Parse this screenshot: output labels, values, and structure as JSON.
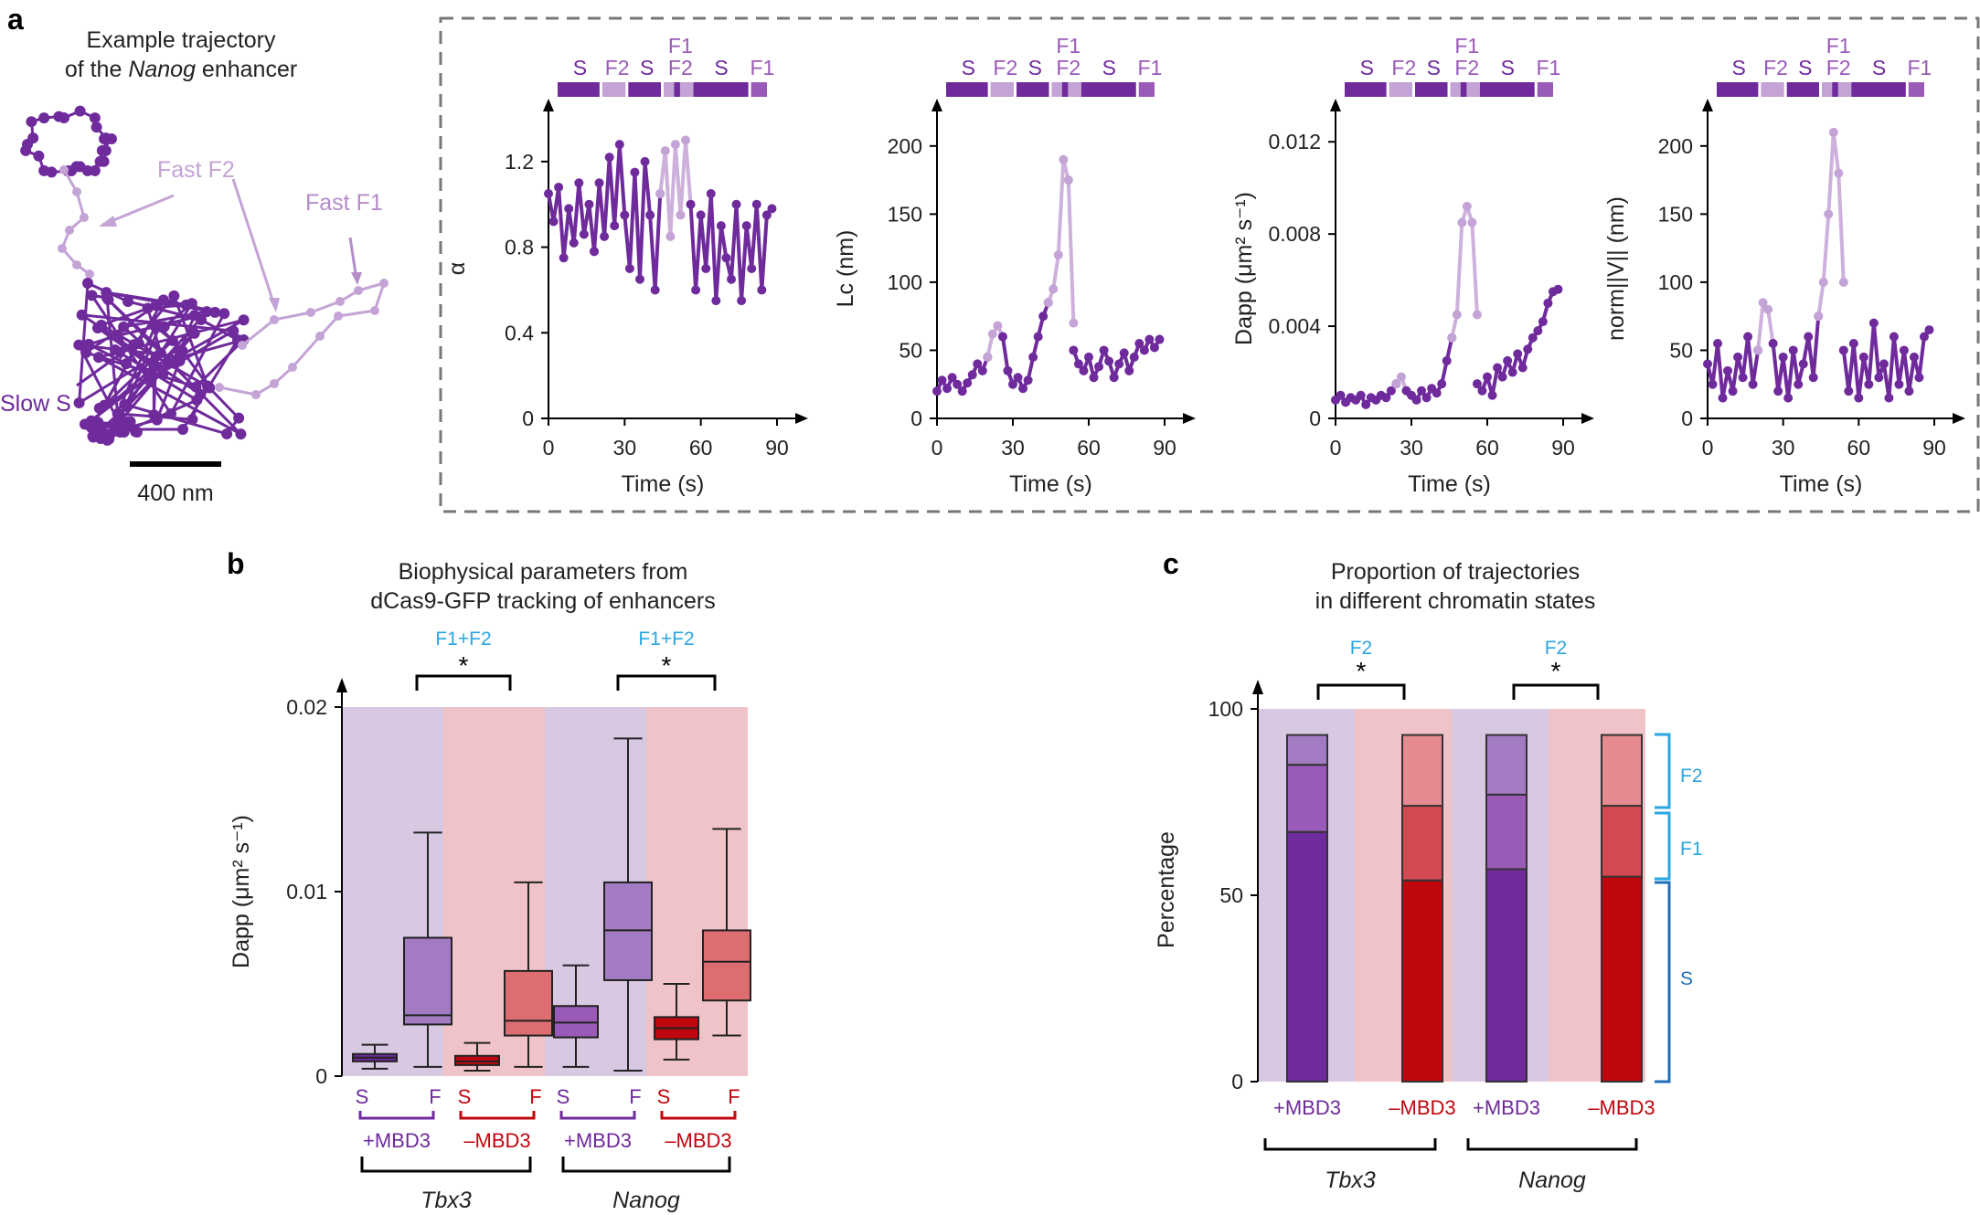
{
  "colors": {
    "s": "#6f2a9c",
    "f1": "#9a5ab8",
    "f2": "#c4a3d6",
    "mbd3_plus_bg": "#d9c8e2",
    "mbd3_minus_bg": "#efc3c8",
    "red_s": "#c0070f",
    "red_f1": "#d44a52",
    "red_f2": "#e48a90",
    "cyan": "#2aa6e0",
    "blue": "#1f6fb8",
    "plus_box_f": "#a27bc2",
    "minus_box_f": "#de6d72"
  },
  "panels": {
    "a": {
      "letter": "a"
    },
    "b": {
      "letter": "b"
    },
    "c": {
      "letter": "c"
    }
  },
  "trajectory": {
    "title_line1": "Example trajectory",
    "title_pre": "of the ",
    "title_gene": "Nanog",
    "title_post": " enhancer",
    "label_f2": "Fast F2",
    "label_f1": "Fast F1",
    "label_s": "Slow S",
    "scale_label": "400 nm"
  },
  "state_bar": {
    "labels": [
      "S",
      "F2",
      "S",
      "F1",
      "F2",
      "S",
      "F1"
    ],
    "segments": [
      {
        "state": "S",
        "start": 0,
        "end": 12
      },
      {
        "state": "F2",
        "start": 12,
        "end": 19
      },
      {
        "state": "S",
        "start": 19,
        "end": 28.5
      },
      {
        "state": "F1F2",
        "start": 28.5,
        "end": 36.5
      },
      {
        "state": "S",
        "start": 36.5,
        "end": 52
      },
      {
        "state": "F1",
        "start": 52,
        "end": 57
      }
    ]
  },
  "chart_data": [
    {
      "type": "line",
      "panel": "a",
      "ylabel": "α",
      "xlabel": "Time (s)",
      "xlim": [
        0,
        90
      ],
      "ylim": [
        0,
        1.4
      ],
      "xticks": [
        0,
        30,
        60,
        90
      ],
      "yticks": [
        0,
        0.4,
        0.8,
        1.2
      ],
      "ytick_labels": [
        "0",
        "0.4",
        "0.8",
        "1.2"
      ],
      "series": [
        {
          "state": "S",
          "x": [
            0,
            2,
            4,
            6,
            8,
            10,
            12,
            14,
            16,
            18
          ],
          "y": [
            1.05,
            0.92,
            1.08,
            0.75,
            0.98,
            0.82,
            1.1,
            0.86,
            1.0,
            0.78
          ]
        },
        {
          "state": "S",
          "x": [
            18,
            20,
            22,
            24,
            26,
            28,
            30,
            32,
            34,
            36,
            38,
            40,
            42,
            44
          ],
          "y": [
            0.78,
            1.1,
            0.85,
            1.22,
            0.9,
            1.28,
            0.95,
            0.7,
            1.15,
            0.65,
            1.2,
            0.95,
            0.6,
            1.05
          ]
        },
        {
          "state": "F2",
          "x": [
            44,
            46,
            48,
            50,
            52,
            54,
            56
          ],
          "y": [
            1.05,
            1.25,
            0.85,
            1.28,
            0.95,
            1.3,
            1.0
          ]
        },
        {
          "state": "S",
          "x": [
            56,
            58,
            60,
            62,
            64,
            66,
            68,
            70,
            72,
            74,
            76,
            78,
            80,
            82,
            84,
            86,
            88
          ],
          "y": [
            1.0,
            0.6,
            0.95,
            0.7,
            1.05,
            0.55,
            0.9,
            0.75,
            0.65,
            1.0,
            0.55,
            0.9,
            0.7,
            1.0,
            0.6,
            0.95,
            0.98
          ]
        }
      ]
    },
    {
      "type": "line",
      "panel": "a",
      "ylabel": "Lc (nm)",
      "xlabel": "Time (s)",
      "xlim": [
        0,
        90
      ],
      "ylim": [
        0,
        220
      ],
      "xticks": [
        0,
        30,
        60,
        90
      ],
      "yticks": [
        0,
        50,
        100,
        150,
        200
      ],
      "ytick_labels": [
        "0",
        "50",
        "100",
        "150",
        "200"
      ],
      "series": [
        {
          "state": "S",
          "x": [
            0,
            2,
            4,
            6,
            8,
            10,
            12,
            14,
            16,
            18,
            20
          ],
          "y": [
            20,
            28,
            22,
            30,
            25,
            20,
            26,
            32,
            40,
            35,
            45
          ]
        },
        {
          "state": "F2",
          "x": [
            20,
            22,
            24,
            26
          ],
          "y": [
            45,
            62,
            68,
            60
          ]
        },
        {
          "state": "S",
          "x": [
            26,
            28,
            30,
            32,
            34,
            36,
            38,
            40,
            42,
            44
          ],
          "y": [
            60,
            35,
            25,
            30,
            22,
            28,
            45,
            60,
            75,
            85
          ]
        },
        {
          "state": "F2",
          "x": [
            44,
            46,
            48,
            50,
            52,
            54
          ],
          "y": [
            85,
            95,
            120,
            190,
            175,
            70
          ]
        },
        {
          "state": "S",
          "x": [
            54,
            56,
            58,
            60,
            62,
            64,
            66,
            68,
            70,
            72,
            74,
            76,
            78,
            80,
            82,
            84,
            86,
            88
          ],
          "y": [
            50,
            40,
            35,
            45,
            30,
            38,
            50,
            42,
            30,
            40,
            48,
            35,
            45,
            55,
            50,
            58,
            52,
            58
          ]
        }
      ]
    },
    {
      "type": "line",
      "panel": "a",
      "ylabel": "Dapp (μm² s⁻¹)",
      "xlabel": "Time (s)",
      "xlim": [
        0,
        90
      ],
      "ylim": [
        0,
        0.013
      ],
      "xticks": [
        0,
        30,
        60,
        90
      ],
      "yticks": [
        0,
        0.004,
        0.008,
        0.012
      ],
      "ytick_labels": [
        "0",
        "0.004",
        "0.008",
        "0.012"
      ],
      "series": [
        {
          "state": "S",
          "x": [
            0,
            2,
            4,
            6,
            8,
            10,
            12,
            14,
            16,
            18,
            20,
            22,
            24
          ],
          "y": [
            0.0008,
            0.001,
            0.0007,
            0.0009,
            0.0008,
            0.001,
            0.0006,
            0.0009,
            0.0008,
            0.001,
            0.0009,
            0.0012,
            0.0015
          ]
        },
        {
          "state": "F2",
          "x": [
            24,
            26,
            28
          ],
          "y": [
            0.0015,
            0.0018,
            0.0012
          ]
        },
        {
          "state": "S",
          "x": [
            28,
            30,
            32,
            34,
            36,
            38,
            40,
            42,
            44,
            46
          ],
          "y": [
            0.0012,
            0.001,
            0.0008,
            0.0012,
            0.0009,
            0.0013,
            0.0011,
            0.0015,
            0.0025,
            0.0035
          ]
        },
        {
          "state": "F2",
          "x": [
            46,
            48,
            50,
            52,
            54,
            56
          ],
          "y": [
            0.0035,
            0.0045,
            0.0085,
            0.0092,
            0.0085,
            0.0045
          ]
        },
        {
          "state": "S",
          "x": [
            56,
            58,
            60,
            62,
            64,
            66,
            68,
            70,
            72,
            74,
            76,
            78,
            80,
            82,
            84,
            86,
            88
          ],
          "y": [
            0.0015,
            0.0012,
            0.0018,
            0.001,
            0.0022,
            0.0018,
            0.0025,
            0.002,
            0.0028,
            0.0022,
            0.003,
            0.0035,
            0.0038,
            0.0042,
            0.005,
            0.0055,
            0.0056
          ]
        }
      ]
    },
    {
      "type": "line",
      "panel": "a",
      "ylabel": "norm||V|| (nm)",
      "xlabel": "Time (s)",
      "xlim": [
        0,
        90
      ],
      "ylim": [
        0,
        220
      ],
      "xticks": [
        0,
        30,
        60,
        90
      ],
      "yticks": [
        0,
        50,
        100,
        150,
        200
      ],
      "ytick_labels": [
        "0",
        "50",
        "100",
        "150",
        "200"
      ],
      "series": [
        {
          "state": "S",
          "x": [
            0,
            2,
            4,
            6,
            8,
            10,
            12,
            14,
            16,
            18,
            20
          ],
          "y": [
            40,
            25,
            55,
            15,
            35,
            20,
            45,
            30,
            60,
            25,
            50
          ]
        },
        {
          "state": "F2",
          "x": [
            20,
            22,
            24,
            26
          ],
          "y": [
            50,
            85,
            80,
            55
          ]
        },
        {
          "state": "S",
          "x": [
            26,
            28,
            30,
            32,
            34,
            36,
            38,
            40,
            42,
            44
          ],
          "y": [
            55,
            20,
            45,
            15,
            50,
            25,
            40,
            60,
            30,
            75
          ]
        },
        {
          "state": "F2",
          "x": [
            44,
            46,
            48,
            50,
            52,
            54
          ],
          "y": [
            75,
            100,
            150,
            210,
            180,
            100
          ]
        },
        {
          "state": "S",
          "x": [
            54,
            56,
            58,
            60,
            62,
            64,
            66,
            68,
            70,
            72,
            74,
            76,
            78,
            80,
            82,
            84,
            86,
            88
          ],
          "y": [
            50,
            20,
            55,
            15,
            45,
            25,
            70,
            30,
            40,
            15,
            60,
            25,
            50,
            20,
            45,
            30,
            60,
            65
          ]
        }
      ]
    },
    {
      "type": "box",
      "panel": "b",
      "title_line1": "Biophysical parameters from",
      "title_line2": "dCas9-GFP tracking of enhancers",
      "ylabel": "Dapp (μm² s⁻¹)",
      "ylim": [
        0,
        0.021
      ],
      "yticks": [
        0,
        0.01,
        0.02
      ],
      "ytick_labels": [
        "0",
        "0.01",
        "0.02"
      ],
      "boxes": [
        {
          "label": "S",
          "min": 0.0004,
          "q1": 0.0008,
          "median": 0.001,
          "q3": 0.0012,
          "max": 0.0017
        },
        {
          "label": "F",
          "min": 0.0005,
          "q1": 0.0028,
          "median": 0.0033,
          "q3": 0.0075,
          "max": 0.0132
        },
        {
          "label": "S",
          "min": 0.0003,
          "q1": 0.0006,
          "median": 0.0008,
          "q3": 0.0011,
          "max": 0.0018
        },
        {
          "label": "F",
          "min": 0.0005,
          "q1": 0.0022,
          "median": 0.003,
          "q3": 0.0057,
          "max": 0.0105
        },
        {
          "label": "S",
          "min": 0.0005,
          "q1": 0.0021,
          "median": 0.0029,
          "q3": 0.0038,
          "max": 0.006
        },
        {
          "label": "F",
          "min": 0.0003,
          "q1": 0.0052,
          "median": 0.0079,
          "q3": 0.0105,
          "max": 0.0183
        },
        {
          "label": "S",
          "min": 0.0009,
          "q1": 0.002,
          "median": 0.0026,
          "q3": 0.0032,
          "max": 0.005
        },
        {
          "label": "F",
          "min": 0.0022,
          "q1": 0.0041,
          "median": 0.0062,
          "q3": 0.0079,
          "max": 0.0134
        }
      ],
      "group_labels": [
        "+MBD3",
        "–MBD3",
        "+MBD3",
        "–MBD3"
      ],
      "gene_labels": [
        "Tbx3",
        "Nanog"
      ],
      "sig_label": "F1+F2",
      "sig_mark": "*"
    },
    {
      "type": "stacked-bar",
      "panel": "c",
      "title_line1": "Proportion of trajectories",
      "title_line2": "in different chromatin states",
      "ylabel": "Percentage",
      "ylim": [
        0,
        100
      ],
      "yticks": [
        0,
        50,
        100
      ],
      "ytick_labels": [
        "0",
        "50",
        "100"
      ],
      "categories": [
        "+MBD3",
        "–MBD3",
        "+MBD3",
        "–MBD3"
      ],
      "gene_labels": [
        "Tbx3",
        "Nanog"
      ],
      "series": [
        {
          "name": "S",
          "values": [
            67,
            54,
            57,
            55
          ]
        },
        {
          "name": "F1",
          "values": [
            18,
            20,
            20,
            19
          ]
        },
        {
          "name": "F2",
          "values": [
            8,
            19,
            16,
            19
          ]
        }
      ],
      "legend": [
        "F2",
        "F1",
        "S"
      ],
      "sig_label": "F2",
      "sig_mark": "*"
    }
  ]
}
